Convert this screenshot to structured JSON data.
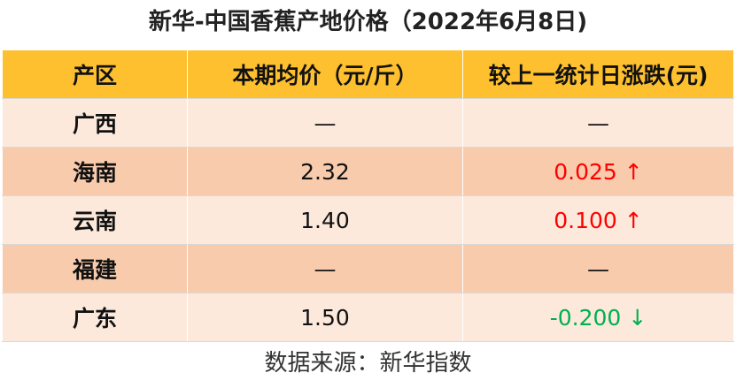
{
  "header": {
    "title": "新华-中国香蕉产地价格（2022年6月8日)"
  },
  "table": {
    "columns": [
      "产区",
      "本期均价（元/斤）",
      "较上一统计日涨跌(元)"
    ],
    "rows": [
      [
        "广西",
        "—",
        "—"
      ],
      [
        "海南",
        "2.32",
        "0.025 ↑"
      ],
      [
        "云南",
        "1.40",
        "0.100 ↑"
      ],
      [
        "福建",
        "—",
        "—"
      ],
      [
        "广东",
        "1.50",
        "-0.200 ↓"
      ]
    ],
    "rise_color": "#ff0000",
    "fall_color": "#00b050"
  },
  "footer": {
    "source": "数据来源：新华指数"
  }
}
